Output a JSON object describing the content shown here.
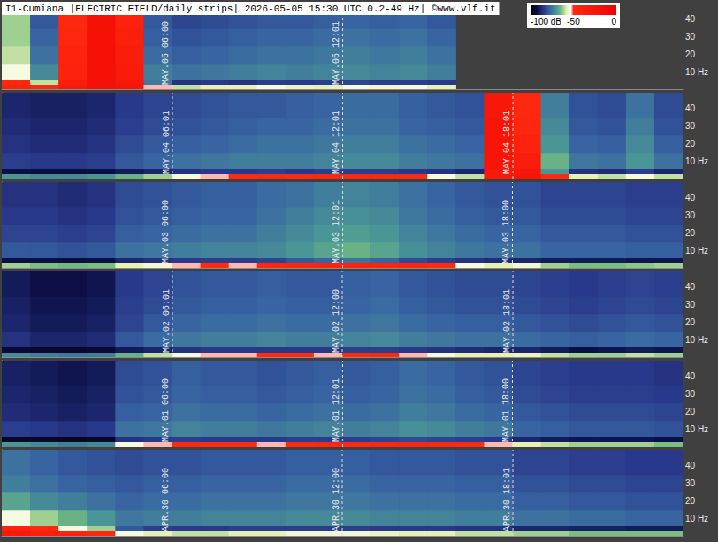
{
  "chart_data": {
    "type": "heatmap",
    "title": "I1-Cumiana |ELECTRIC FIELD/daily strips| 2026-05-05 15:30 UTC 0.2-49 Hz| ©www.vlf.it",
    "xlim": [
      0,
      24
    ],
    "ylim": [
      0.2,
      49
    ],
    "yticks": [
      {
        "value": 10,
        "label": "10 Hz"
      },
      20,
      30,
      40
    ],
    "tick_labels": "y",
    "x_edges": [
      0,
      1,
      2,
      3,
      4,
      5,
      6,
      7,
      8,
      9,
      10,
      11,
      12,
      13,
      14,
      15,
      16,
      17,
      18,
      19,
      20,
      21,
      22,
      23,
      24
    ],
    "y_edges": [
      0.2,
      3,
      6,
      15,
      25,
      35,
      49
    ],
    "colorbar": {
      "range": [
        -100,
        0
      ],
      "ticks": [
        {
          "value": -100,
          "label": "-100 dB"
        },
        -50,
        0
      ]
    },
    "strips": [
      {
        "markers": [
          {
            "value": 6,
            "label": "MAY.05 06:00"
          },
          {
            "value": 12.017,
            "label": "MAY.05 12:01"
          }
        ],
        "cells": [
          [
            -40,
            -45,
            -30,
            -20,
            -25,
            -52,
            -60,
            -58,
            -58,
            -55,
            -57,
            -58,
            -55,
            -56,
            -55,
            -58,
            null,
            null,
            null,
            null,
            null,
            null,
            null,
            null
          ],
          [
            -48,
            -60,
            -35,
            -20,
            -28,
            -75,
            -86,
            -85,
            -86,
            -84,
            -85,
            -84,
            -83,
            -84,
            -84,
            -85,
            null,
            null,
            null,
            null,
            null,
            null,
            null,
            null
          ],
          [
            -55,
            -72,
            -40,
            -20,
            -32,
            -74,
            -76,
            -75,
            -74,
            -73,
            -74,
            -73,
            -72,
            -73,
            -72,
            -74,
            null,
            null,
            null,
            null,
            null,
            null,
            null,
            null
          ],
          [
            -60,
            -76,
            -42,
            -20,
            -35,
            -77,
            -79,
            -78,
            -77,
            -76,
            -76,
            -75,
            -74,
            -75,
            -74,
            -76,
            null,
            null,
            null,
            null,
            null,
            null,
            null,
            null
          ],
          [
            -62,
            -78,
            -45,
            -20,
            -38,
            -79,
            -81,
            -80,
            -79,
            -78,
            -78,
            -77,
            -76,
            -77,
            -76,
            -78,
            null,
            null,
            null,
            null,
            null,
            null,
            null,
            null
          ],
          [
            -62,
            -80,
            -48,
            -20,
            -40,
            -80,
            -83,
            -82,
            -81,
            -80,
            -80,
            -79,
            -78,
            -79,
            -78,
            -80,
            null,
            null,
            null,
            null,
            null,
            null,
            null,
            null
          ]
        ]
      },
      {
        "markers": [
          {
            "value": 6.017,
            "label": "MAY.04 06:01"
          },
          {
            "value": 12.017,
            "label": "MAY.04 12:01"
          },
          {
            "value": 18.017,
            "label": "MAY.04 18:01"
          }
        ],
        "cells": [
          [
            -70,
            -72,
            -72,
            -70,
            -66,
            -62,
            -55,
            -52,
            -50,
            -48,
            -50,
            -48,
            -48,
            -47,
            -50,
            -55,
            -60,
            -30,
            -25,
            -50,
            -58,
            -60,
            -55,
            -60
          ],
          [
            -92,
            -93,
            -93,
            -92,
            -90,
            -88,
            -86,
            -85,
            -85,
            -84,
            -85,
            -84,
            -84,
            -84,
            -85,
            -86,
            -88,
            -30,
            -28,
            -70,
            -86,
            -87,
            -84,
            -88
          ],
          [
            -84,
            -85,
            -85,
            -84,
            -80,
            -78,
            -76,
            -75,
            -74,
            -74,
            -74,
            -73,
            -72,
            -72,
            -74,
            -75,
            -76,
            -25,
            -35,
            -66,
            -75,
            -76,
            -70,
            -76
          ],
          [
            -86,
            -87,
            -87,
            -86,
            -82,
            -80,
            -79,
            -78,
            -77,
            -76,
            -76,
            -75,
            -74,
            -74,
            -76,
            -77,
            -78,
            -25,
            -40,
            -70,
            -78,
            -79,
            -72,
            -79
          ],
          [
            -87,
            -88,
            -88,
            -87,
            -84,
            -82,
            -81,
            -80,
            -79,
            -78,
            -78,
            -77,
            -76,
            -76,
            -78,
            -79,
            -80,
            -25,
            -45,
            -72,
            -80,
            -81,
            -74,
            -81
          ],
          [
            -88,
            -89,
            -89,
            -88,
            -85,
            -83,
            -82,
            -81,
            -80,
            -80,
            -79,
            -78,
            -77,
            -77,
            -79,
            -80,
            -81,
            -28,
            -48,
            -74,
            -81,
            -82,
            -76,
            -82
          ]
        ]
      },
      {
        "markers": [
          {
            "value": 6,
            "label": "MAY.03 06:00"
          },
          {
            "value": 12.017,
            "label": "MAY.03 12:01"
          },
          {
            "value": 18,
            "label": "MAY.03 18:00"
          }
        ],
        "cells": [
          [
            -62,
            -64,
            -65,
            -64,
            -58,
            -56,
            -52,
            -50,
            -52,
            -48,
            -45,
            -42,
            -40,
            -42,
            -45,
            -50,
            -55,
            -58,
            -56,
            -62,
            -64,
            -64,
            -63,
            -62
          ],
          [
            -92,
            -92,
            -93,
            -92,
            -88,
            -86,
            -85,
            -84,
            -84,
            -83,
            -80,
            -78,
            -76,
            -78,
            -82,
            -84,
            -86,
            -87,
            -88,
            -90,
            -90,
            -90,
            -91,
            -91
          ],
          [
            -80,
            -80,
            -81,
            -80,
            -76,
            -75,
            -74,
            -73,
            -73,
            -72,
            -70,
            -68,
            -66,
            -68,
            -71,
            -73,
            -75,
            -76,
            -76,
            -78,
            -78,
            -78,
            -79,
            -79
          ],
          [
            -83,
            -83,
            -84,
            -83,
            -79,
            -78,
            -77,
            -76,
            -76,
            -74,
            -72,
            -70,
            -69,
            -70,
            -73,
            -75,
            -77,
            -78,
            -78,
            -80,
            -80,
            -80,
            -81,
            -81
          ],
          [
            -85,
            -85,
            -86,
            -85,
            -81,
            -80,
            -79,
            -78,
            -78,
            -76,
            -74,
            -72,
            -71,
            -72,
            -75,
            -77,
            -79,
            -80,
            -80,
            -82,
            -82,
            -82,
            -83,
            -83
          ],
          [
            -86,
            -86,
            -87,
            -86,
            -82,
            -81,
            -80,
            -79,
            -79,
            -77,
            -76,
            -74,
            -73,
            -74,
            -76,
            -78,
            -80,
            -81,
            -81,
            -83,
            -83,
            -83,
            -84,
            -84
          ]
        ]
      },
      {
        "markers": [
          {
            "value": 6.017,
            "label": "MAY.02 06:01"
          },
          {
            "value": 12,
            "label": "MAY.02 12:00"
          },
          {
            "value": 18.017,
            "label": "MAY.02 18:01"
          }
        ],
        "cells": [
          [
            -72,
            -74,
            -75,
            -74,
            -66,
            -60,
            -55,
            -52,
            -52,
            -50,
            -50,
            -52,
            -50,
            -48,
            -52,
            -55,
            -58,
            -58,
            -57,
            -60,
            -62,
            -62,
            -60,
            -62
          ],
          [
            -94,
            -95,
            -95,
            -94,
            -90,
            -88,
            -86,
            -85,
            -85,
            -85,
            -85,
            -85,
            -84,
            -84,
            -85,
            -86,
            -87,
            -88,
            -88,
            -90,
            -92,
            -91,
            -90,
            -91
          ],
          [
            -86,
            -88,
            -88,
            -87,
            -80,
            -77,
            -75,
            -74,
            -74,
            -73,
            -74,
            -74,
            -73,
            -72,
            -74,
            -75,
            -76,
            -76,
            -77,
            -78,
            -79,
            -78,
            -77,
            -78
          ],
          [
            -88,
            -90,
            -90,
            -89,
            -83,
            -80,
            -78,
            -77,
            -77,
            -76,
            -77,
            -77,
            -76,
            -75,
            -77,
            -78,
            -79,
            -79,
            -80,
            -81,
            -82,
            -81,
            -80,
            -81
          ],
          [
            -89,
            -91,
            -91,
            -90,
            -84,
            -82,
            -80,
            -79,
            -79,
            -78,
            -79,
            -79,
            -78,
            -77,
            -79,
            -80,
            -81,
            -81,
            -82,
            -83,
            -84,
            -83,
            -82,
            -83
          ],
          [
            -90,
            -92,
            -92,
            -91,
            -85,
            -83,
            -81,
            -80,
            -80,
            -79,
            -80,
            -80,
            -79,
            -78,
            -80,
            -81,
            -82,
            -82,
            -83,
            -84,
            -85,
            -84,
            -83,
            -84
          ]
        ]
      },
      {
        "markers": [
          {
            "value": 6,
            "label": "MAY.01 06:00"
          },
          {
            "value": 12.017,
            "label": "MAY.01 12:01"
          },
          {
            "value": 18,
            "label": "MAY.01 18:00"
          }
        ],
        "cells": [
          [
            -70,
            -72,
            -74,
            -72,
            -55,
            -52,
            -48,
            -50,
            -50,
            -52,
            -50,
            -48,
            -50,
            -48,
            -45,
            -48,
            -50,
            -52,
            -58,
            -60,
            -62,
            -62,
            -62,
            -64
          ],
          [
            -96,
            -96,
            -97,
            -96,
            -86,
            -85,
            -84,
            -85,
            -85,
            -85,
            -84,
            -84,
            -84,
            -83,
            -82,
            -83,
            -84,
            -85,
            -88,
            -90,
            -91,
            -91,
            -91,
            -92
          ],
          [
            -84,
            -85,
            -86,
            -85,
            -76,
            -75,
            -73,
            -74,
            -74,
            -75,
            -74,
            -73,
            -74,
            -73,
            -71,
            -72,
            -74,
            -75,
            -78,
            -79,
            -80,
            -80,
            -80,
            -81
          ],
          [
            -87,
            -88,
            -89,
            -88,
            -79,
            -78,
            -76,
            -77,
            -77,
            -78,
            -77,
            -76,
            -77,
            -76,
            -74,
            -75,
            -77,
            -78,
            -80,
            -81,
            -82,
            -82,
            -82,
            -83
          ],
          [
            -88,
            -89,
            -90,
            -89,
            -81,
            -80,
            -78,
            -79,
            -79,
            -80,
            -79,
            -78,
            -79,
            -78,
            -76,
            -77,
            -79,
            -80,
            -82,
            -83,
            -84,
            -84,
            -84,
            -85
          ],
          [
            -89,
            -90,
            -91,
            -90,
            -82,
            -81,
            -79,
            -80,
            -80,
            -81,
            -80,
            -79,
            -80,
            -79,
            -77,
            -78,
            -80,
            -81,
            -83,
            -84,
            -85,
            -85,
            -85,
            -86
          ]
        ]
      },
      {
        "markers": [
          {
            "value": 6,
            "label": "APR.30 06:00"
          },
          {
            "value": 12,
            "label": "APR.30 12:00"
          },
          {
            "value": 18.017,
            "label": "APR.30 18:01"
          }
        ],
        "cells": [
          [
            -30,
            -38,
            -42,
            -46,
            -55,
            -58,
            -60,
            -60,
            -58,
            -58,
            -56,
            -56,
            -56,
            -57,
            -58,
            -58,
            -60,
            -60,
            -62,
            -62,
            -64,
            -64,
            -64,
            -64
          ],
          [
            -40,
            -48,
            -55,
            -62,
            -80,
            -84,
            -85,
            -85,
            -84,
            -84,
            -84,
            -84,
            -84,
            -85,
            -85,
            -85,
            -86,
            -86,
            -88,
            -88,
            -89,
            -89,
            -90,
            -90
          ],
          [
            -55,
            -62,
            -66,
            -70,
            -75,
            -74,
            -74,
            -73,
            -73,
            -73,
            -72,
            -72,
            -72,
            -73,
            -73,
            -73,
            -74,
            -74,
            -76,
            -76,
            -77,
            -77,
            -78,
            -78
          ],
          [
            -68,
            -72,
            -74,
            -76,
            -78,
            -77,
            -77,
            -76,
            -76,
            -76,
            -75,
            -75,
            -75,
            -76,
            -76,
            -76,
            -77,
            -77,
            -79,
            -79,
            -80,
            -80,
            -81,
            -81
          ],
          [
            -74,
            -76,
            -78,
            -79,
            -80,
            -79,
            -79,
            -78,
            -78,
            -78,
            -77,
            -77,
            -77,
            -78,
            -78,
            -78,
            -79,
            -79,
            -81,
            -81,
            -82,
            -82,
            -83,
            -83
          ],
          [
            -76,
            -78,
            -80,
            -81,
            -82,
            -81,
            -81,
            -80,
            -80,
            -80,
            -79,
            -79,
            -79,
            -80,
            -80,
            -80,
            -81,
            -81,
            -83,
            -83,
            -84,
            -84,
            -85,
            -85
          ]
        ]
      }
    ]
  }
}
